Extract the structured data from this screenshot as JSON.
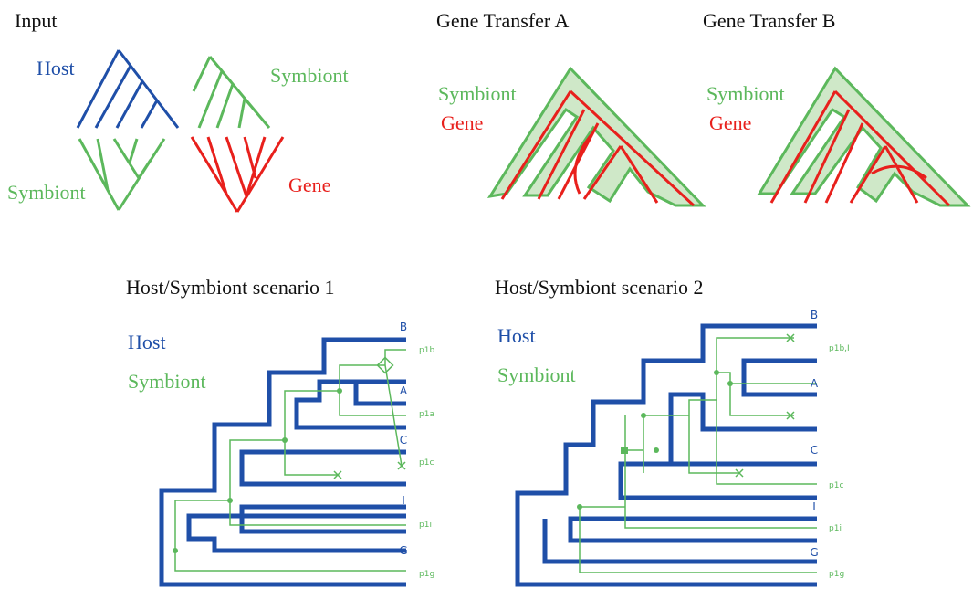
{
  "input": {
    "title": "Input",
    "host": "Host",
    "symbiont_left": "Symbiont",
    "symbiont_right": "Symbiont",
    "gene": "Gene"
  },
  "transfer_a": {
    "title": "Gene Transfer A",
    "symbiont": "Symbiont",
    "gene": "Gene"
  },
  "transfer_b": {
    "title": "Gene Transfer B",
    "symbiont": "Symbiont",
    "gene": "Gene"
  },
  "scenario_1": {
    "title": "Host/Symbiont scenario 1",
    "host": "Host",
    "symbiont": "Symbiont",
    "host_leaves": [
      "B",
      "A",
      "C",
      "I",
      "G"
    ],
    "symbiont_leaves": [
      "p1b",
      "p1a",
      "p1c",
      "p1i",
      "p1g"
    ]
  },
  "scenario_2": {
    "title": "Host/Symbiont scenario 2",
    "host": "Host",
    "symbiont": "Symbiont",
    "host_leaves": [
      "B",
      "A",
      "C",
      "I",
      "G"
    ],
    "symbiont_leaves": [
      "p1b,I",
      "p1c",
      "p1i",
      "p1g"
    ]
  }
}
